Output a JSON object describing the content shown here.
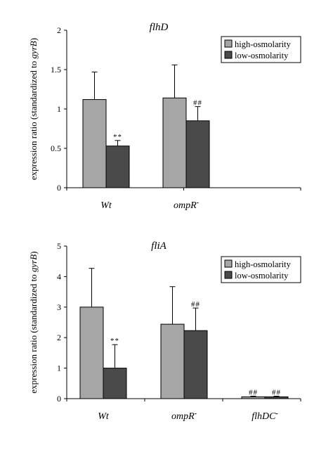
{
  "colors": {
    "high": "#a6a6a6",
    "low": "#4a4a4a",
    "axis": "#000000"
  },
  "chart_data": [
    {
      "type": "bar",
      "title": "flhD",
      "ylabel_parts": [
        "expression ratio (standardized to ",
        "gyrB",
        ")"
      ],
      "ylim": [
        0,
        2
      ],
      "yticks": [
        0,
        0.5,
        1,
        1.5,
        2
      ],
      "ytick_labels": [
        "0",
        "0.5",
        "1",
        "1.5",
        "2"
      ],
      "categories": [
        {
          "label": "Wt",
          "sup": ""
        },
        {
          "label": "ompR",
          "sup": "-"
        }
      ],
      "legend": {
        "position": "top-right"
      },
      "series": [
        {
          "name": "high-osmolarity",
          "key": "high",
          "values": [
            1.12,
            1.14
          ],
          "errors": [
            0.35,
            0.42
          ],
          "marks": [
            "",
            ""
          ]
        },
        {
          "name": "low-osmolarity",
          "key": "low",
          "values": [
            0.53,
            0.85
          ],
          "errors": [
            0.07,
            0.18
          ],
          "marks": [
            "**",
            "##"
          ]
        }
      ]
    },
    {
      "type": "bar",
      "title": "fliA",
      "ylabel_parts": [
        "expression ratio (standardized to ",
        "gyrB",
        ")"
      ],
      "ylim": [
        0,
        5
      ],
      "yticks": [
        0,
        1,
        2,
        3,
        4,
        5
      ],
      "ytick_labels": [
        "0",
        "1",
        "2",
        "3",
        "4",
        "5"
      ],
      "categories": [
        {
          "label": "Wt",
          "sup": ""
        },
        {
          "label": "ompR",
          "sup": "-"
        },
        {
          "label": "flhDC",
          "sup": "-"
        }
      ],
      "legend": {
        "position": "top-right"
      },
      "series": [
        {
          "name": "high-osmolarity",
          "key": "high",
          "values": [
            3.0,
            2.44,
            0.06
          ],
          "errors": [
            1.27,
            1.23,
            0.02
          ],
          "marks": [
            "",
            "",
            "##"
          ]
        },
        {
          "name": "low-osmolarity",
          "key": "low",
          "values": [
            1.0,
            2.23,
            0.06
          ],
          "errors": [
            0.77,
            0.74,
            0.02
          ],
          "marks": [
            "**",
            "##",
            "##"
          ]
        }
      ]
    }
  ]
}
